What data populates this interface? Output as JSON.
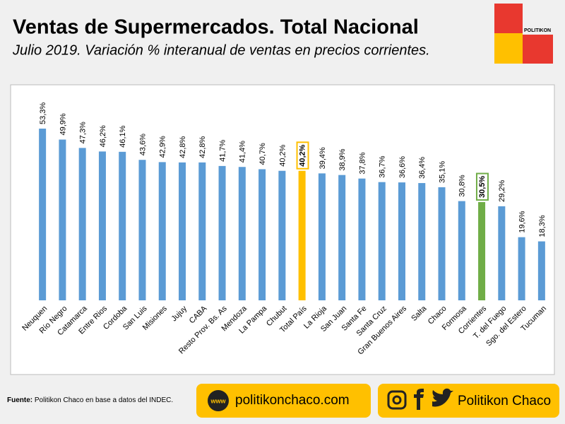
{
  "chart_data": {
    "type": "bar",
    "title": "Ventas de Supermercados. Total Nacional",
    "subtitle": "Julio 2019. Variación % interanual de ventas en precios corrientes.",
    "categories": [
      "Neuquen",
      "Río Negro",
      "Catamarca",
      "Entre Rios",
      "Cordoba",
      "San Luis",
      "Misiones",
      "Jujuy",
      "CABA",
      "Resto Prov. Bs. As",
      "Mendoza",
      "La Pampa",
      "Chubut",
      "Total País",
      "La Rioja",
      "San Juan",
      "Santa Fe",
      "Santa Cruz",
      "Gran Buenos Aires",
      "Salta",
      "Chaco",
      "Formosa",
      "Corrientes",
      "T. del Fuego",
      "Sgo. del Estero",
      "Tucuman"
    ],
    "values": [
      53.3,
      49.9,
      47.3,
      46.2,
      46.1,
      43.6,
      42.9,
      42.8,
      42.8,
      41.7,
      41.4,
      40.7,
      40.2,
      40.2,
      39.4,
      38.9,
      37.8,
      36.7,
      36.6,
      36.4,
      35.1,
      30.8,
      30.5,
      29.2,
      19.6,
      18.3
    ],
    "value_labels": [
      "53,3%",
      "49,9%",
      "47,3%",
      "46,2%",
      "46,1%",
      "43,6%",
      "42,9%",
      "42,8%",
      "42,8%",
      "41,7%",
      "41,4%",
      "40,7%",
      "40,2%",
      "40,2%",
      "39,4%",
      "38,9%",
      "37,8%",
      "36,7%",
      "36,6%",
      "36,4%",
      "35,1%",
      "30,8%",
      "30,5%",
      "29,2%",
      "19,6%",
      "18,3%"
    ],
    "color": "#5b9bd5",
    "colors": [
      "#5b9bd5",
      "#5b9bd5",
      "#5b9bd5",
      "#5b9bd5",
      "#5b9bd5",
      "#5b9bd5",
      "#5b9bd5",
      "#5b9bd5",
      "#5b9bd5",
      "#5b9bd5",
      "#5b9bd5",
      "#5b9bd5",
      "#5b9bd5",
      "#ffc000",
      "#5b9bd5",
      "#5b9bd5",
      "#5b9bd5",
      "#5b9bd5",
      "#5b9bd5",
      "#5b9bd5",
      "#5b9bd5",
      "#5b9bd5",
      "#70ad47",
      "#5b9bd5",
      "#5b9bd5",
      "#5b9bd5"
    ]
  },
  "logo": "POLITIKON",
  "footer": {
    "source_label": "Fuente:",
    "source": "Politikon Chaco en base a datos del INDEC.",
    "www": "www",
    "website": "politikonchaco.com",
    "social": "Politikon Chaco"
  }
}
